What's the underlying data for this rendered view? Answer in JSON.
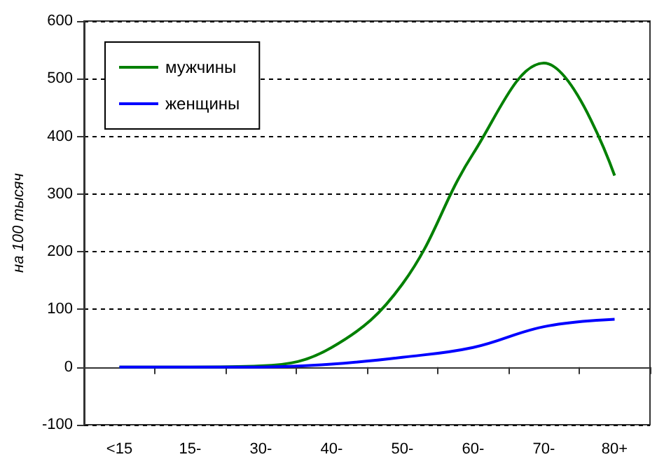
{
  "chart_data": {
    "type": "line",
    "ylabel": "на 100 тысяч",
    "categories": [
      "<15",
      "15-",
      "30-",
      "40-",
      "50-",
      "60-",
      "70-",
      "80+"
    ],
    "series": [
      {
        "name": "мужчины",
        "color": "#008000",
        "values": [
          0,
          0,
          2,
          34,
          144,
          370,
          527,
          332
        ]
      },
      {
        "name": "женщины",
        "color": "#0000ff",
        "values": [
          0,
          0,
          0,
          5,
          17,
          34,
          70,
          83
        ]
      }
    ],
    "ylim": [
      -100,
      600
    ],
    "yticks": [
      -100,
      0,
      100,
      200,
      300,
      400,
      500,
      600
    ],
    "grid": "y",
    "legend": "top left",
    "marker": "none",
    "line_style": "solid"
  }
}
